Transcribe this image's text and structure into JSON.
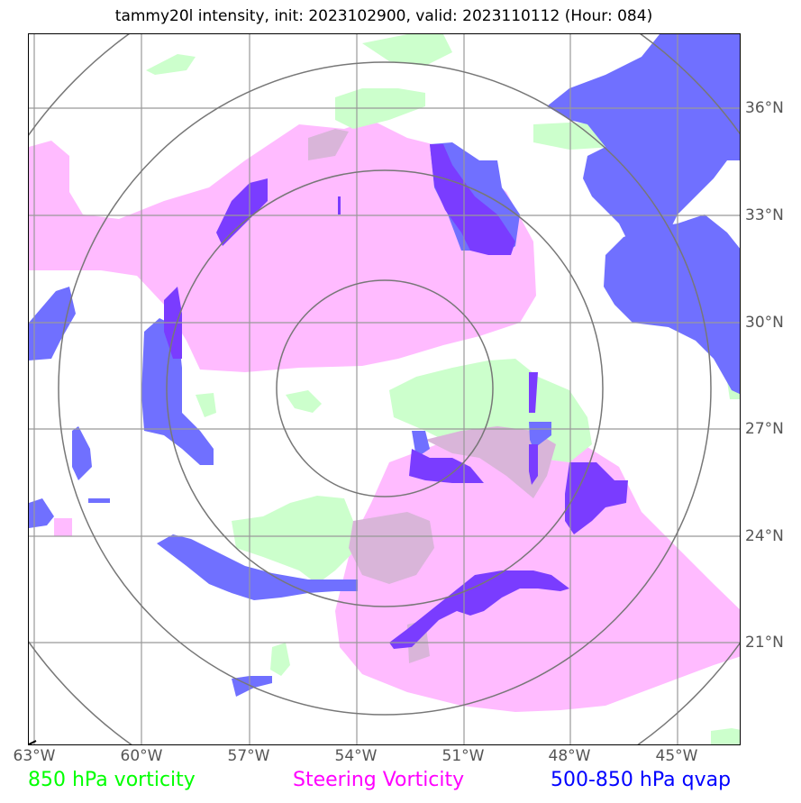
{
  "title": "tammy20l intensity, init: 2023102900, valid: 2023110112 (Hour: 084)",
  "colors": {
    "vorticity_850": "#ccffcc",
    "steering_vorticity": "#ffbbff",
    "qvap_500_850": "#7070ff",
    "qvap_dark": "#7a3cff",
    "gridline": "#999999",
    "range_ring": "#777777"
  },
  "axes": {
    "lon_labels": [
      "63°W",
      "60°W",
      "57°W",
      "54°W",
      "51°W",
      "48°W",
      "45°W"
    ],
    "lat_labels": [
      "36°N",
      "33°N",
      "30°N",
      "27°N",
      "24°N",
      "21°N"
    ]
  },
  "legend": {
    "vorticity_850": "850 hPa vorticity",
    "steering": "Steering Vorticity",
    "qvap": "500-850 hPa qvap"
  }
}
